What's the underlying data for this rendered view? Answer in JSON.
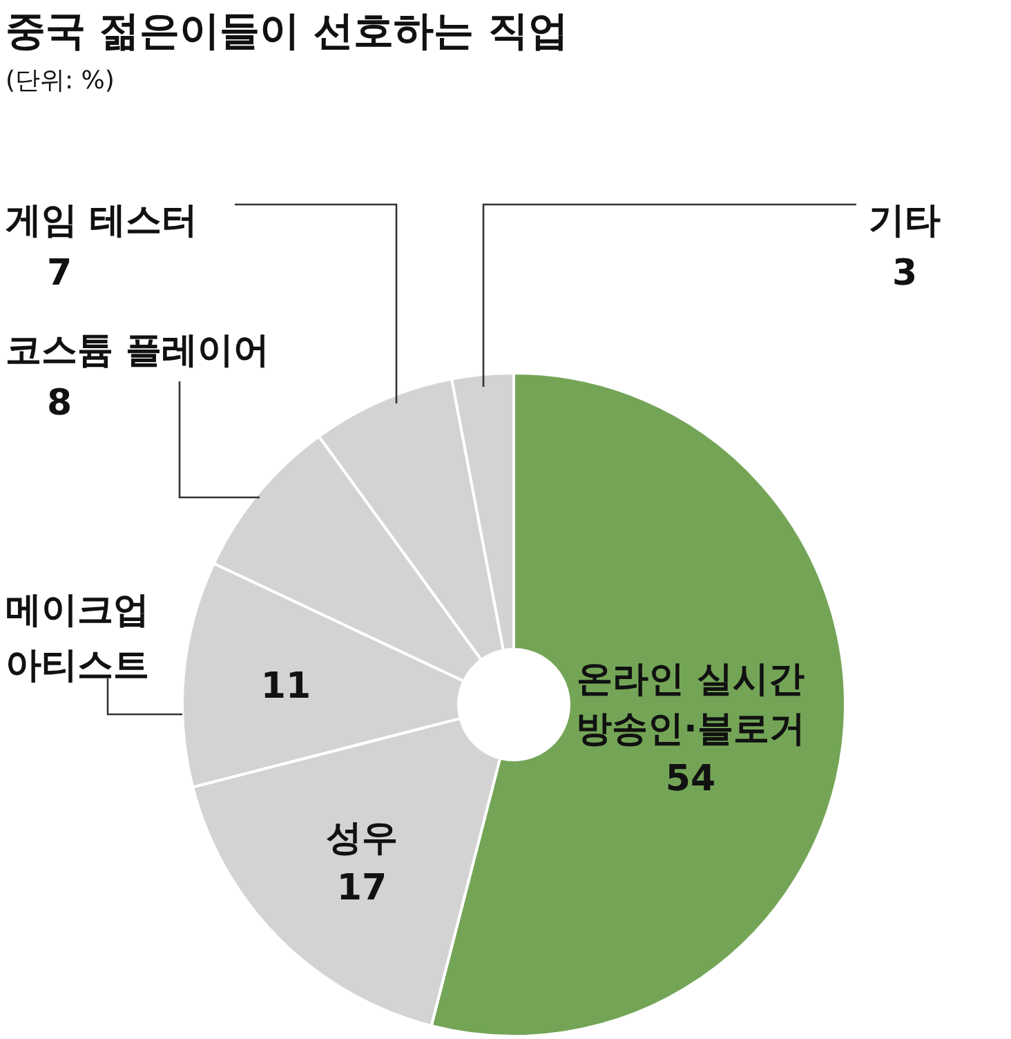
{
  "chart_data": {
    "type": "donut",
    "title": "중국 젊은이들이 선호하는 직업",
    "subtitle": "(단위: %)",
    "categories": [
      "온라인 실시간\n방송인·블로거",
      "성우",
      "메이크업\n아티스트",
      "코스튬 플레이어",
      "게임 테스터",
      "기타"
    ],
    "values": [
      54,
      17,
      11,
      8,
      7,
      3
    ],
    "colors": [
      "#74a557",
      "#d3d3d3",
      "#d3d3d3",
      "#d3d3d3",
      "#d3d3d3",
      "#d3d3d3"
    ],
    "data_labels": true
  }
}
